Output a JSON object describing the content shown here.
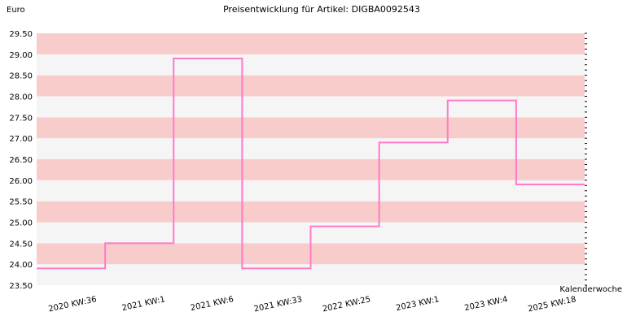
{
  "chart_data": {
    "type": "line",
    "step": true,
    "title": "Preisentwicklung für Artikel: DIGBA0092543",
    "ylabel": "Euro",
    "xlabel": "Kalenderwoche",
    "ylim": [
      23.5,
      29.5
    ],
    "yticks": [
      "23.50",
      "24.00",
      "24.50",
      "25.00",
      "25.50",
      "26.00",
      "26.50",
      "27.00",
      "27.50",
      "28.00",
      "28.50",
      "29.00",
      "29.50"
    ],
    "categories": [
      "2020 KW:36",
      "2021 KW:1",
      "2021 KW:6",
      "2021 KW:33",
      "2022 KW:25",
      "2023 KW:1",
      "2023 KW:4",
      "2025 KW:18"
    ],
    "series": [
      {
        "values": [
          23.9,
          24.5,
          28.9,
          23.9,
          24.9,
          26.9,
          27.9,
          25.9
        ]
      }
    ],
    "grid": true,
    "band_colors": [
      "#f9cccc",
      "#f5f5f5"
    ],
    "line_color": "#ff7ac8"
  }
}
